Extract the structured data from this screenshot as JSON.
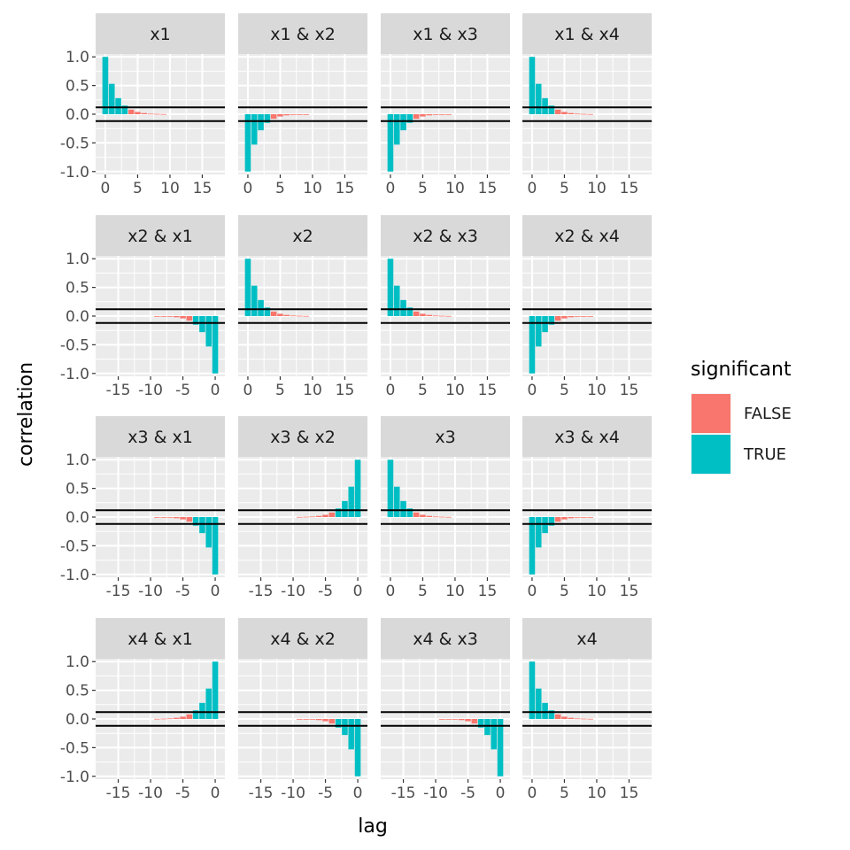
{
  "chart_data": {
    "type": "bar",
    "xlabel": "lag",
    "ylabel": "correlation",
    "ylim": [
      -1.05,
      1.05
    ],
    "y_ticks": [
      1.0,
      0.5,
      0.0,
      -0.5,
      -1.0
    ],
    "y_tick_labels": [
      "1.0",
      "0.5",
      "0.0",
      "-0.5",
      "-1.0"
    ],
    "x_ticks_positive": [
      0,
      5,
      10,
      15
    ],
    "x_ticks_negative": [
      -15,
      -10,
      -5,
      0
    ],
    "xlim_positive": [
      -1.5,
      18.5
    ],
    "xlim_negative": [
      -18.5,
      1.5
    ],
    "significance_bounds": [
      0.12,
      -0.12
    ],
    "grid": true,
    "legend": {
      "title": "significant",
      "position": "right",
      "entries": [
        {
          "label": "FALSE",
          "color": "#F8766D"
        },
        {
          "label": "TRUE",
          "color": "#00BFC4"
        }
      ]
    },
    "panel_background": "#EBEBEB",
    "strip_background": "#D9D9D9",
    "bound_line_color": "#000000",
    "lags": [
      0,
      1,
      2,
      3,
      4,
      5,
      6,
      7,
      8,
      9
    ],
    "panels": [
      {
        "title": "x1",
        "lags_direction": "positive",
        "values": [
          1.0,
          0.53,
          0.28,
          0.15,
          0.08,
          0.04,
          0.02,
          0.01,
          0.006,
          0.003
        ]
      },
      {
        "title": "x1 & x2",
        "lags_direction": "positive",
        "values": [
          -1.0,
          -0.53,
          -0.28,
          -0.15,
          -0.08,
          -0.04,
          -0.02,
          -0.01,
          -0.006,
          -0.003
        ]
      },
      {
        "title": "x1 & x3",
        "lags_direction": "positive",
        "values": [
          -1.0,
          -0.53,
          -0.28,
          -0.15,
          -0.08,
          -0.04,
          -0.02,
          -0.01,
          -0.006,
          -0.003
        ]
      },
      {
        "title": "x1 & x4",
        "lags_direction": "positive",
        "values": [
          1.0,
          0.53,
          0.28,
          0.15,
          0.08,
          0.04,
          0.02,
          0.01,
          0.006,
          0.003
        ]
      },
      {
        "title": "x2 & x1",
        "lags_direction": "negative",
        "values": [
          -1.0,
          -0.53,
          -0.28,
          -0.15,
          -0.08,
          -0.04,
          -0.02,
          -0.01,
          -0.006,
          -0.003
        ]
      },
      {
        "title": "x2",
        "lags_direction": "positive",
        "values": [
          1.0,
          0.53,
          0.28,
          0.15,
          0.08,
          0.04,
          0.02,
          0.01,
          0.006,
          0.003
        ]
      },
      {
        "title": "x2 & x3",
        "lags_direction": "positive",
        "values": [
          1.0,
          0.53,
          0.28,
          0.15,
          0.08,
          0.04,
          0.02,
          0.01,
          0.006,
          0.003
        ]
      },
      {
        "title": "x2 & x4",
        "lags_direction": "positive",
        "values": [
          -1.0,
          -0.53,
          -0.28,
          -0.15,
          -0.08,
          -0.04,
          -0.02,
          -0.01,
          -0.006,
          -0.003
        ]
      },
      {
        "title": "x3 & x1",
        "lags_direction": "negative",
        "values": [
          -1.0,
          -0.53,
          -0.28,
          -0.15,
          -0.08,
          -0.04,
          -0.02,
          -0.01,
          -0.006,
          -0.003
        ]
      },
      {
        "title": "x3 & x2",
        "lags_direction": "negative",
        "values": [
          1.0,
          0.53,
          0.28,
          0.15,
          0.08,
          0.04,
          0.02,
          0.01,
          0.006,
          0.003
        ]
      },
      {
        "title": "x3",
        "lags_direction": "positive",
        "values": [
          1.0,
          0.53,
          0.28,
          0.15,
          0.08,
          0.04,
          0.02,
          0.01,
          0.006,
          0.003
        ]
      },
      {
        "title": "x3 & x4",
        "lags_direction": "positive",
        "values": [
          -1.0,
          -0.53,
          -0.28,
          -0.15,
          -0.08,
          -0.04,
          -0.02,
          -0.01,
          -0.006,
          -0.003
        ]
      },
      {
        "title": "x4 & x1",
        "lags_direction": "negative",
        "values": [
          1.0,
          0.53,
          0.28,
          0.15,
          0.08,
          0.04,
          0.02,
          0.01,
          0.006,
          0.003
        ]
      },
      {
        "title": "x4 & x2",
        "lags_direction": "negative",
        "values": [
          -1.0,
          -0.53,
          -0.28,
          -0.15,
          -0.08,
          -0.04,
          -0.02,
          -0.01,
          -0.006,
          -0.003
        ]
      },
      {
        "title": "x4 & x3",
        "lags_direction": "negative",
        "values": [
          -1.0,
          -0.53,
          -0.28,
          -0.15,
          -0.08,
          -0.04,
          -0.02,
          -0.01,
          -0.006,
          -0.003
        ]
      },
      {
        "title": "x4",
        "lags_direction": "positive",
        "values": [
          1.0,
          0.53,
          0.28,
          0.15,
          0.08,
          0.04,
          0.02,
          0.01,
          0.006,
          0.003
        ]
      }
    ]
  }
}
